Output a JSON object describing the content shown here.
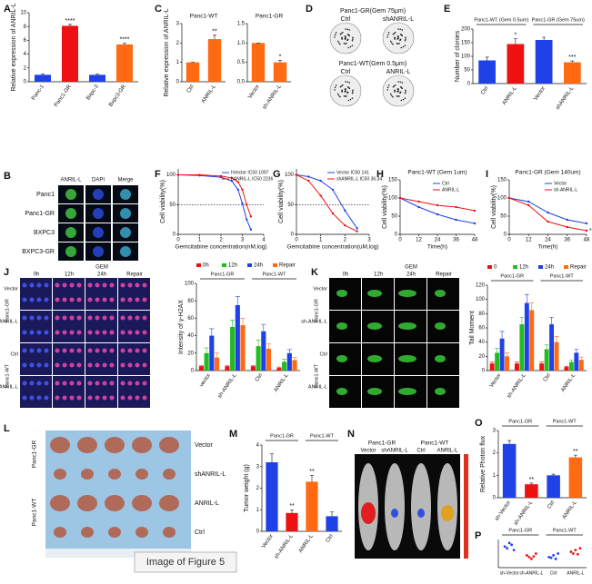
{
  "chart_data": [
    {
      "panel": "A",
      "type": "bar",
      "ylabel": "Relative expression of ANRIL-L",
      "categories": [
        "Panc-1",
        "Panc1-GR",
        "Bxpc-3",
        "Bxpc3-GR"
      ],
      "values": [
        1,
        8.1,
        1,
        5.4
      ],
      "errors": [
        0.1,
        0.2,
        0.1,
        0.15
      ],
      "colors": [
        "#2040e8",
        "#ee1111",
        "#2040e8",
        "#ff6a13"
      ],
      "significance": [
        null,
        "****",
        null,
        "****"
      ],
      "ylim": [
        0,
        10
      ],
      "yticks": [
        0,
        2,
        4,
        6,
        8,
        10
      ]
    },
    {
      "panel": "C",
      "type": "bar",
      "title": "Panc1-WT",
      "ylabel": "Relative expression of ANRIL-L",
      "categories": [
        "Ctrl",
        "ANRIL-L"
      ],
      "values": [
        1,
        2.2
      ],
      "errors": [
        0,
        0.2
      ],
      "colors": [
        "#ff6a13",
        "#ff6a13"
      ],
      "significance": [
        null,
        "**"
      ],
      "ylim": [
        0,
        3
      ],
      "yticks": [
        0,
        1,
        2,
        3
      ]
    },
    {
      "type": "bar",
      "title": "Panc1-GR",
      "categories": [
        "Vector",
        "sh-ANRIL-L"
      ],
      "values": [
        1,
        0.5
      ],
      "errors": [
        0,
        0.05
      ],
      "colors": [
        "#ff6a13",
        "#ff6a13"
      ],
      "significance": [
        null,
        "*"
      ],
      "ylim": [
        0,
        1.5
      ],
      "yticks": [
        {
          "value": 0,
          "label": "0.0"
        },
        0.5,
        {
          "value": 1,
          "label": "1.0"
        },
        1.5
      ]
    },
    {
      "panel": "E",
      "type": "bar",
      "ylabel": "Number of clonies",
      "groups": [
        "Panc1-WT (Gem 0.5um)",
        "Panc1-GR (Gem 75um)"
      ],
      "categories": [
        "Ctrl",
        "ANRIL-L",
        "Vector",
        "shANRIL-L"
      ],
      "values": [
        85,
        145,
        160,
        78
      ],
      "errors": [
        12,
        20,
        10,
        5
      ],
      "colors": [
        "#2040e8",
        "#ee1111",
        "#2040e8",
        "#ff6a13"
      ],
      "significance": [
        null,
        "*",
        null,
        "***"
      ],
      "ylim": [
        0,
        200
      ],
      "yticks": [
        0,
        50,
        100,
        150,
        200
      ]
    },
    {
      "panel": "F",
      "type": "line",
      "xlabel": "Gemcitabine concentration(nM,log)",
      "ylabel": "Cell viability(%)",
      "x": [
        0,
        1,
        2,
        2.5,
        2.8,
        3,
        3.2,
        3.4
      ],
      "series": [
        {
          "name": "hVector IC50  1097",
          "color": "#2040e8",
          "values": [
            100,
            99,
            96,
            90,
            75,
            52,
            25,
            8
          ]
        },
        {
          "name": "hANRIL-L  IC50  2236",
          "color": "#ee1111",
          "values": [
            100,
            100,
            98,
            95,
            88,
            75,
            50,
            30
          ]
        }
      ],
      "reference": 50,
      "xlim": [
        0,
        4
      ],
      "xticks": [
        0,
        1,
        2,
        3,
        4
      ],
      "ylim": [
        0,
        110
      ],
      "yticks": [
        0,
        50,
        100
      ]
    },
    {
      "panel": "G",
      "type": "line",
      "xlabel": "Gemcitabine concentration(uM,log)",
      "ylabel": "Cell viability(%)",
      "x": [
        0,
        0.5,
        1,
        1.5,
        2,
        2.5
      ],
      "series": [
        {
          "name": "Vector IC50  141",
          "color": "#2040e8",
          "values": [
            100,
            97,
            90,
            75,
            40,
            10
          ]
        },
        {
          "name": "shANRIL-L IC50  36.34",
          "color": "#ee1111",
          "values": [
            100,
            90,
            65,
            35,
            15,
            5
          ]
        }
      ],
      "reference": 50,
      "xlim": [
        0,
        3
      ],
      "xticks": [
        0,
        1,
        2,
        3
      ],
      "ylim": [
        0,
        110
      ],
      "yticks": [
        0,
        50,
        100
      ]
    },
    {
      "panel": "H",
      "type": "line",
      "title": "Panc1-WT (Gem 1um)",
      "xlabel": "Time(h)",
      "ylabel": "Cell viability(%)",
      "x": [
        0,
        12,
        24,
        36,
        48
      ],
      "series": [
        {
          "name": "Ctrl",
          "color": "#2040e8",
          "values": [
            100,
            75,
            55,
            40,
            30
          ]
        },
        {
          "name": "ANRIL-L",
          "color": "#ee1111",
          "values": [
            100,
            90,
            80,
            75,
            65
          ]
        }
      ],
      "xlim": [
        0,
        48
      ],
      "xticks": [
        0,
        12,
        24,
        36,
        48
      ],
      "ylim": [
        0,
        150
      ],
      "yticks": [
        0,
        50,
        100,
        150
      ]
    },
    {
      "panel": "I",
      "type": "line",
      "title": "Panc1-GR (Gem 140um)",
      "xlabel": "Time(h)",
      "ylabel": "Cell viability(%)",
      "x": [
        0,
        12,
        24,
        36,
        48
      ],
      "series": [
        {
          "name": "Vector",
          "color": "#2040e8",
          "values": [
            100,
            90,
            60,
            40,
            30
          ]
        },
        {
          "name": "sh-ANRIL-L",
          "color": "#ee1111",
          "values": [
            100,
            80,
            35,
            20,
            10
          ]
        }
      ],
      "annotation": "*",
      "xlim": [
        0,
        48
      ],
      "xticks": [
        0,
        12,
        24,
        36,
        48
      ],
      "ylim": [
        0,
        150
      ],
      "yticks": [
        0,
        50,
        100,
        150
      ]
    },
    {
      "type": "grouped_bar",
      "ylabel": "Intensity of γ-H2AX",
      "groups": [
        "Panc1-GR",
        "Panc1-WT"
      ],
      "categories": [
        "vector",
        "sh-ANRIL-L",
        "Ctrl",
        "ANRIL-L"
      ],
      "series": [
        {
          "name": "0h",
          "color": "#ee1111",
          "values": [
            5,
            5,
            5,
            3
          ],
          "errors": [
            1,
            1,
            1,
            1
          ]
        },
        {
          "name": "12h",
          "color": "#22bb22",
          "values": [
            20,
            50,
            28,
            10
          ],
          "errors": [
            6,
            8,
            7,
            3
          ]
        },
        {
          "name": "24h",
          "color": "#2040e8",
          "values": [
            40,
            75,
            45,
            20
          ],
          "errors": [
            8,
            10,
            8,
            4
          ]
        },
        {
          "name": "Repair",
          "color": "#ff6a13",
          "values": [
            15,
            52,
            25,
            12
          ],
          "errors": [
            5,
            8,
            6,
            3
          ]
        }
      ],
      "ylim": [
        0,
        100
      ],
      "yticks": [
        0,
        20,
        40,
        60,
        80,
        100
      ]
    },
    {
      "type": "grouped_bar",
      "ylabel": "Tail Moment",
      "groups": [
        "Panc1-GR",
        "Panc1-WT"
      ],
      "categories": [
        "Vector",
        "sh-ANRIL-L",
        "Ctrl",
        "ANRIL-L"
      ],
      "series": [
        {
          "name": "0",
          "color": "#ee1111",
          "values": [
            10,
            10,
            10,
            5
          ],
          "errors": [
            2,
            2,
            2,
            1
          ]
        },
        {
          "name": "12h",
          "color": "#22bb22",
          "values": [
            25,
            65,
            30,
            12
          ],
          "errors": [
            6,
            10,
            6,
            3
          ]
        },
        {
          "name": "24h",
          "color": "#2040e8",
          "values": [
            45,
            95,
            65,
            25
          ],
          "errors": [
            10,
            12,
            10,
            5
          ]
        },
        {
          "name": "Repair",
          "color": "#ff6a13",
          "values": [
            20,
            85,
            40,
            15
          ],
          "errors": [
            5,
            10,
            8,
            4
          ]
        }
      ],
      "ylim": [
        0,
        120
      ],
      "yticks": [
        0,
        20,
        40,
        60,
        80,
        100,
        120
      ]
    },
    {
      "panel": "M",
      "type": "bar",
      "ylabel": "Tumor weight (g)",
      "groups": [
        "Panc1-GR",
        "Panc1-WT"
      ],
      "categories": [
        "Vector",
        "sh-ANRIL-L",
        "ANRIL-L",
        "Ctrl"
      ],
      "values": [
        3.2,
        0.85,
        2.3,
        0.7
      ],
      "errors": [
        0.4,
        0.15,
        0.3,
        0.2
      ],
      "colors": [
        "#2040e8",
        "#ee1111",
        "#ff6a13",
        "#2040e8"
      ],
      "significance": [
        null,
        "**",
        "**",
        null
      ],
      "ylim": [
        0,
        4
      ],
      "yticks": [
        0,
        1,
        2,
        3,
        4
      ]
    },
    {
      "panel": "O",
      "type": "bar",
      "ylabel": "Relative Photon flux",
      "groups": [
        "Panc1-GR",
        "Panc1-WT"
      ],
      "categories": [
        "sh-Vector",
        "sh-ANRIL-L",
        "Ctrl",
        "ANRIL-L"
      ],
      "values": [
        2.4,
        0.6,
        1,
        1.8
      ],
      "errors": [
        0.15,
        0.05,
        0.05,
        0.1
      ],
      "colors": [
        "#2040e8",
        "#ee1111",
        "#2040e8",
        "#ff6a13"
      ],
      "significance": [
        null,
        "**",
        null,
        "**"
      ],
      "ylim": [
        0,
        3
      ],
      "yticks": [
        0,
        1,
        2,
        3
      ]
    },
    {
      "panel": "P",
      "type": "strip",
      "groups": [
        "Panc1-GR",
        "Panc1-WT"
      ],
      "categories": [
        "sh-Vector",
        "sh-ANRIL-L",
        "Ctrl",
        "ANRIL-L"
      ],
      "colors": [
        "#2040e8",
        "#ee1111",
        "#2040e8",
        "#ee1111"
      ],
      "values": [
        [
          6,
          5.5,
          7,
          6.5,
          5
        ],
        [
          3.5,
          3,
          2.5,
          3.2,
          4
        ],
        [
          3,
          2.8,
          3.5,
          2.5,
          4
        ],
        [
          4.5,
          4,
          5,
          3.8,
          5.5
        ]
      ],
      "ylim": [
        0,
        8
      ]
    }
  ],
  "images": {
    "B": {
      "letter": "B",
      "columns": [
        "ANRIL-L",
        "DAPI",
        "Merge"
      ],
      "rows": [
        "Panc1",
        "Panc1-GR",
        "BXPC3",
        "BXPC3-GR"
      ]
    },
    "D": {
      "letter": "D",
      "sections": [
        {
          "title": "Panc1-GR(Gem 75μm)",
          "columns": [
            "Ctrl",
            "shANRIL-L"
          ]
        },
        {
          "title": "Panc1-WT(Gem 0.5μm)",
          "columns": [
            "Ctrl",
            "ANRIL-L"
          ]
        }
      ]
    },
    "J": {
      "letter": "J",
      "header": "GEM",
      "columns": [
        "0h",
        "12h",
        "24h",
        "Repair"
      ],
      "rows": [
        "Vector",
        "sh-ANRIL-L",
        "Ctrl",
        "ANRIL-L"
      ],
      "groups": [
        "Panc1-GR",
        "Panc1-WT"
      ]
    },
    "K": {
      "letter": "K",
      "header": "GEM",
      "columns": [
        "0h",
        "12h",
        "24h",
        "Repair"
      ],
      "rows": [
        "Vector",
        "sh-ANRIL-L",
        "Ctrl",
        "ANRIL-L"
      ],
      "groups": [
        "Panc1-GR",
        "Panc1-WT"
      ]
    },
    "L": {
      "letter": "L",
      "rows": [
        "Vector",
        "shANRIL-L",
        "ANRIL-L",
        "Ctrl"
      ],
      "groups": [
        "Panc1-GR",
        "Panc1-WT"
      ]
    },
    "N": {
      "letter": "N",
      "groups": [
        "Panc1-GR",
        "Panc1-WT"
      ],
      "columns": [
        "Vector",
        "shANRIL-L",
        "Ctrl",
        "ANRIL-L"
      ]
    }
  },
  "tooltip": "Image of Figure 5"
}
